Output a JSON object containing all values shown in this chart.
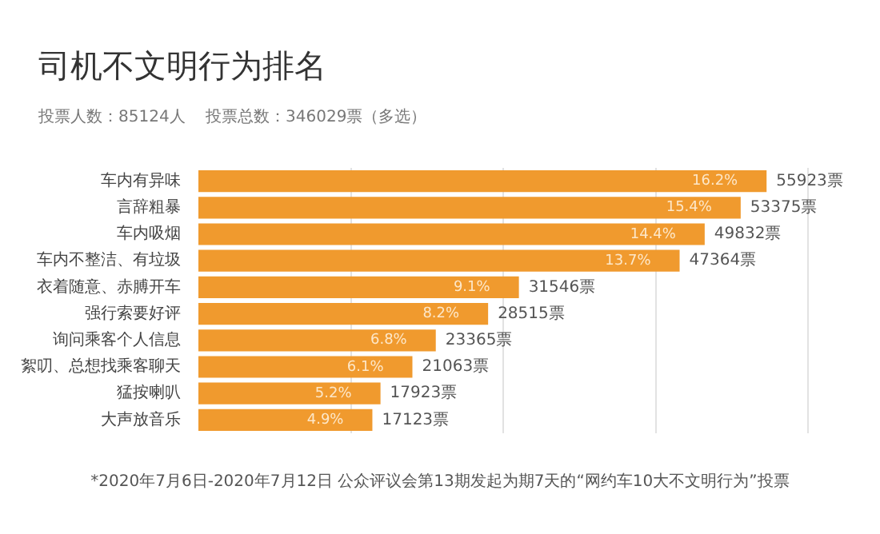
{
  "chart_data": {
    "type": "bar",
    "orientation": "horizontal",
    "title": "司机不文明行为排名",
    "subtitle": "投票人数：85124人    投票总数：346029票（多选）",
    "categories": [
      "车内有异味",
      "言辞粗暴",
      "车内吸烟",
      "车内不整洁、有垃圾",
      "衣着随意、赤膊开车",
      "强行索要好评",
      "询问乘客个人信息",
      "絮叨、总想找乘客聊天",
      "猛按喇叭",
      "大声放音乐"
    ],
    "values": [
      55923,
      53375,
      49832,
      47364,
      31546,
      28515,
      23365,
      21063,
      17923,
      17123
    ],
    "value_labels": [
      "55923票",
      "53375票",
      "49832票",
      "47364票",
      "31546票",
      "28515票",
      "23365票",
      "21063票",
      "17923票",
      "17123票"
    ],
    "color": "#f09a2e",
    "xlim": [
      0,
      60000
    ],
    "xticks": [
      {
        "value": 15000,
        "label": null
      },
      {
        "value": 30000,
        "label": null
      },
      {
        "value": 45000,
        "label": null
      },
      {
        "value": 60000,
        "label": null
      }
    ],
    "grid": "x",
    "tick_labels": "y",
    "annotations": [
      {
        "text": "16.2%",
        "x": 55923,
        "y": "车内有异味"
      },
      {
        "text": "15.4%",
        "x": 53375,
        "y": "言辞粗暴"
      },
      {
        "text": "14.4%",
        "x": 49832,
        "y": "车内吸烟"
      },
      {
        "text": "13.7%",
        "x": 47364,
        "y": "车内不整洁、有垃圾"
      },
      {
        "text": "9.1%",
        "x": 31546,
        "y": "衣着随意、赤膊开车"
      },
      {
        "text": "8.2%",
        "x": 28515,
        "y": "强行索要好评"
      },
      {
        "text": "6.8%",
        "x": 23365,
        "y": "询问乘客个人信息"
      },
      {
        "text": "6.1%",
        "x": 21063,
        "y": "絮叨、总想找乘客聊天"
      },
      {
        "text": "5.2%",
        "x": 17923,
        "y": "猛按喇叭"
      },
      {
        "text": "4.9%",
        "x": 17123,
        "y": "大声放音乐"
      },
      "*2020年7月6日-2020年7月12日 公众评议会第13期发起为期7天的“网约车10大不文明行为”投票"
    ]
  }
}
